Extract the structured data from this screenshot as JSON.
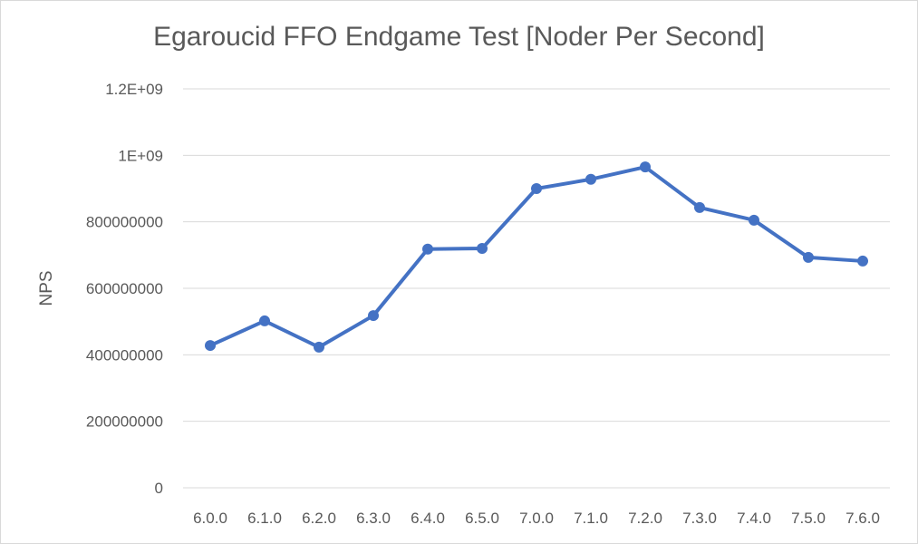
{
  "chart_data": {
    "type": "line",
    "title": "Egaroucid FFO Endgame Test [Noder Per Second]",
    "xlabel": "",
    "ylabel": "NPS",
    "ylim": [
      0,
      1200000000
    ],
    "y_ticks": [
      {
        "value": 0,
        "label": "0"
      },
      {
        "value": 200000000,
        "label": "200000000"
      },
      {
        "value": 400000000,
        "label": "400000000"
      },
      {
        "value": 600000000,
        "label": "600000000"
      },
      {
        "value": 800000000,
        "label": "800000000"
      },
      {
        "value": 1000000000,
        "label": "1E+09"
      },
      {
        "value": 1200000000,
        "label": "1.2E+09"
      }
    ],
    "categories": [
      "6.0.0",
      "6.1.0",
      "6.2.0",
      "6.3.0",
      "6.4.0",
      "6.5.0",
      "7.0.0",
      "7.1.0",
      "7.2.0",
      "7.3.0",
      "7.4.0",
      "7.5.0",
      "7.6.0"
    ],
    "series": [
      {
        "color": "#4472c4",
        "values": [
          428000000,
          502000000,
          423000000,
          518000000,
          718000000,
          720000000,
          900000000,
          928000000,
          965000000,
          843000000,
          805000000,
          693000000,
          682000000
        ]
      }
    ],
    "grid": true,
    "legend": "none"
  }
}
